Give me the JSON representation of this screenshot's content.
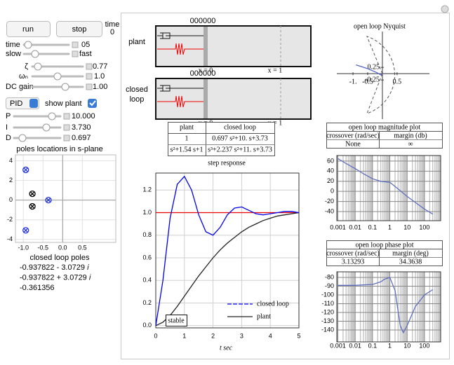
{
  "controls": {
    "run": "run",
    "stop": "stop",
    "time_label": "time",
    "time_value": "0",
    "sliders": [
      {
        "label": "time",
        "value": "05"
      },
      {
        "label": "slow",
        "value": "fast"
      },
      {
        "label": "ζ",
        "value": "0.77"
      },
      {
        "label": "ωₙ",
        "value": "1.0"
      },
      {
        "label": "DC gain",
        "value": "1.00"
      }
    ],
    "mode": "PID",
    "show_plant": "show plant",
    "gains": [
      {
        "label": "P",
        "value": "10.000"
      },
      {
        "label": "I",
        "value": "3.730"
      },
      {
        "label": "D",
        "value": "0.697"
      }
    ],
    "poles_title": "closed loop poles",
    "poles": [
      "-0.937822 - 3.0729 𝑖",
      "-0.937822 + 3.0729 𝑖",
      "-0.361356"
    ]
  },
  "diagrams": [
    {
      "label": [
        "plant"
      ],
      "counter": "000000",
      "x0": "x = 0",
      "x1": "x = 1"
    },
    {
      "label": [
        "closed",
        "loop"
      ],
      "counter": "000000",
      "x0": "x = 0",
      "x1": "x = 1"
    }
  ],
  "tf_table": {
    "headers": [
      "plant",
      "closed loop"
    ],
    "rows": [
      [
        "1",
        "0.697 s²+10. s+3.73"
      ],
      [
        "s²+1.54 s+1",
        "s³+2.237 s²+11. s+3.73"
      ]
    ]
  },
  "chart_data": [
    {
      "type": "scatter",
      "title": "poles locations in s-plane",
      "xlim": [
        -1.2,
        1.35
      ],
      "ylim": [
        -4.3,
        4.6
      ],
      "xticks": [
        {
          "value": -1,
          "label": "-1.0"
        },
        -0.5,
        {
          "value": 0,
          "label": "0.0"
        },
        0.5
      ],
      "yticks": [
        4,
        2,
        0,
        -2,
        -4
      ],
      "grid": true,
      "series": [
        {
          "color": "#2233dd",
          "x": [
            -0.937822,
            -0.937822,
            -0.361356
          ],
          "values": [
            3.0729,
            -3.0729,
            0
          ]
        },
        {
          "color": "#000000",
          "x": [
            -0.77,
            -0.77
          ],
          "values": [
            0.638,
            -0.638
          ]
        }
      ]
    },
    {
      "type": "nyquist",
      "title": "open loop Nyquist",
      "xlim": [
        -1.55,
        1.6
      ],
      "ylim": [
        -1.8,
        1.67
      ],
      "xticks": [
        {
          "value": -1,
          "label": "-1."
        },
        -0.5,
        0.5
      ],
      "yticks": [
        0.25,
        -0.25
      ],
      "series": [
        {
          "color": "#5566cc",
          "x": [
            -0.9,
            -0.5,
            -0.2,
            -0.05,
            0
          ],
          "values": [
            0.35,
            0.2,
            0.05,
            -0.05,
            0
          ]
        }
      ]
    },
    {
      "type": "line",
      "title": "open loop magnitude plot",
      "headers": [
        "crossover (rad/sec)",
        "margin (db)"
      ],
      "row": [
        "None",
        "∞"
      ],
      "log_x": true,
      "grid": true,
      "xlim": [
        0.00087,
        860
      ],
      "ylim": [
        -58,
        71
      ],
      "xticks": [
        0.001,
        0.01,
        0.1,
        1,
        10,
        100
      ],
      "yticks": [
        60,
        40,
        20,
        0,
        -20,
        -40
      ],
      "series": [
        {
          "color": "#5e6fc0",
          "x": [
            0.001,
            0.003,
            0.01,
            0.03,
            0.1,
            0.3,
            1,
            3,
            10,
            30,
            100,
            300
          ],
          "values": [
            65,
            55,
            45,
            35,
            25,
            20,
            18,
            5,
            -10,
            -22,
            -35,
            -45
          ]
        }
      ]
    },
    {
      "type": "line",
      "title": "open loop phase plot",
      "headers": [
        "crossover (rad/sec)",
        "margin (deg)"
      ],
      "row": [
        "3.13293",
        "34.3638"
      ],
      "log_x": true,
      "grid": true,
      "xlim": [
        0.00087,
        860
      ],
      "ylim": [
        -153.6,
        -73.6
      ],
      "xticks": [
        0.001,
        0.01,
        0.1,
        1,
        10,
        100
      ],
      "yticks": [
        -80,
        -90,
        -100,
        -110,
        -120,
        -130,
        -140
      ],
      "series": [
        {
          "color": "#5e6fc0",
          "x": [
            0.001,
            0.01,
            0.1,
            0.3,
            0.5,
            1,
            2,
            4,
            6,
            10,
            30,
            100,
            300
          ],
          "values": [
            -89,
            -89,
            -88,
            -85,
            -82,
            -80,
            -95,
            -135,
            -143,
            -135,
            -113,
            -100,
            -94
          ]
        }
      ]
    },
    {
      "type": "line",
      "title": "step response",
      "xlabel": "t sec",
      "annotation": "stable",
      "legend": "lower right",
      "grid": true,
      "xlim": [
        0,
        5
      ],
      "ylim": [
        -0.02,
        1.35
      ],
      "xticks": [
        0,
        1,
        2,
        3,
        4,
        5
      ],
      "yticks": [
        {
          "value": 0,
          "label": "0.0"
        },
        0.2,
        0.4,
        0.6,
        0.8,
        {
          "value": 1,
          "label": "1.0"
        },
        1.2
      ],
      "x": [
        0,
        0.25,
        0.5,
        0.75,
        1,
        1.25,
        1.5,
        1.75,
        2,
        2.25,
        2.5,
        2.75,
        3,
        3.25,
        3.5,
        3.75,
        4,
        4.25,
        4.5,
        4.75,
        5
      ],
      "series": [
        {
          "name": "closed loop",
          "color": "#0000ee",
          "values": [
            0,
            0.4,
            0.95,
            1.25,
            1.32,
            1.2,
            0.98,
            0.83,
            0.8,
            0.87,
            0.98,
            1.04,
            1.05,
            1.02,
            0.99,
            0.98,
            0.99,
            1,
            1.01,
            1.01,
            1
          ]
        },
        {
          "name": "plant",
          "color": "#222222",
          "values": [
            0,
            0.03,
            0.09,
            0.17,
            0.26,
            0.35,
            0.44,
            0.52,
            0.6,
            0.67,
            0.73,
            0.78,
            0.83,
            0.87,
            0.9,
            0.93,
            0.95,
            0.97,
            0.98,
            0.99,
            1
          ]
        },
        {
          "color": "#ee0000",
          "values": [
            1,
            1,
            1,
            1,
            1,
            1,
            1,
            1,
            1,
            1,
            1,
            1,
            1,
            1,
            1,
            1,
            1,
            1,
            1,
            1,
            1
          ]
        }
      ]
    }
  ]
}
